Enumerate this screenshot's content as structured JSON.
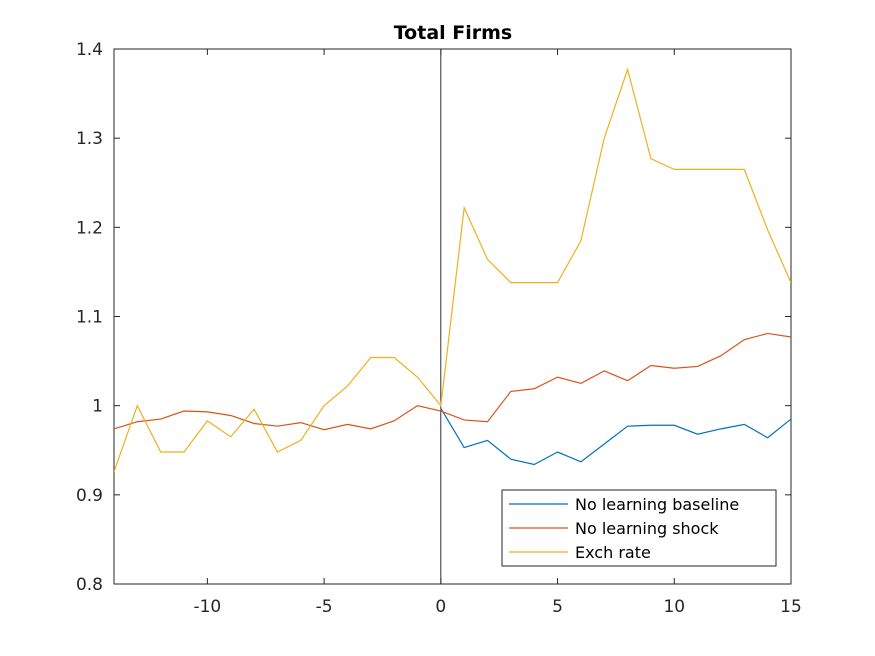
{
  "chart_data": {
    "type": "line",
    "title": "Total Firms",
    "xlabel": "",
    "ylabel": "",
    "xlim": [
      -14,
      15
    ],
    "ylim": [
      0.8,
      1.4
    ],
    "xticks": [
      -10,
      -5,
      0,
      5,
      10,
      15
    ],
    "xtick_labels": [
      "-10",
      "-5",
      "0",
      "5",
      "10",
      "15"
    ],
    "yticks": [
      0.8,
      0.9,
      1.0,
      1.1,
      1.2,
      1.3,
      1.4
    ],
    "ytick_labels": [
      "0.8",
      "0.9",
      "1",
      "1.1",
      "1.2",
      "1.3",
      "1.4"
    ],
    "vertical_line_x": 0,
    "grid": false,
    "legend_position": "bottom-right",
    "series": [
      {
        "name": "No learning baseline",
        "color": "#0072BD",
        "x": [
          0,
          1,
          2,
          3,
          4,
          5,
          6,
          7,
          8,
          9,
          10,
          11,
          12,
          13,
          14,
          15
        ],
        "y": [
          0.997,
          0.953,
          0.961,
          0.94,
          0.934,
          0.948,
          0.937,
          0.957,
          0.977,
          0.978,
          0.978,
          0.968,
          0.974,
          0.979,
          0.964,
          0.985
        ]
      },
      {
        "name": "No learning shock",
        "color": "#D95319",
        "x": [
          -14,
          -13,
          -12,
          -11,
          -10,
          -9,
          -8,
          -7,
          -6,
          -5,
          -4,
          -3,
          -2,
          -1,
          0,
          1,
          2,
          3,
          4,
          5,
          6,
          7,
          8,
          9,
          10,
          11,
          12,
          13,
          14,
          15
        ],
        "y": [
          0.974,
          0.982,
          0.985,
          0.994,
          0.993,
          0.989,
          0.98,
          0.977,
          0.981,
          0.973,
          0.979,
          0.974,
          0.983,
          1.0,
          0.994,
          0.984,
          0.982,
          1.016,
          1.019,
          1.032,
          1.025,
          1.039,
          1.028,
          1.045,
          1.042,
          1.044,
          1.056,
          1.074,
          1.081,
          1.077
        ]
      },
      {
        "name": "Exch rate",
        "color": "#EDB120",
        "x": [
          -14,
          -13,
          -12,
          -11,
          -10,
          -9,
          -8,
          -7,
          -6,
          -5,
          -4,
          -3,
          -2,
          -1,
          0,
          1,
          2,
          3,
          4,
          5,
          6,
          7,
          8,
          9,
          10,
          11,
          12,
          13,
          14,
          15
        ],
        "y": [
          0.926,
          1.0,
          0.948,
          0.948,
          0.983,
          0.965,
          0.996,
          0.948,
          0.961,
          1.0,
          1.022,
          1.054,
          1.054,
          1.032,
          1.0,
          1.222,
          1.164,
          1.138,
          1.138,
          1.138,
          1.185,
          1.3,
          1.377,
          1.277,
          1.265,
          1.265,
          1.265,
          1.265,
          1.197,
          1.138
        ]
      }
    ]
  }
}
